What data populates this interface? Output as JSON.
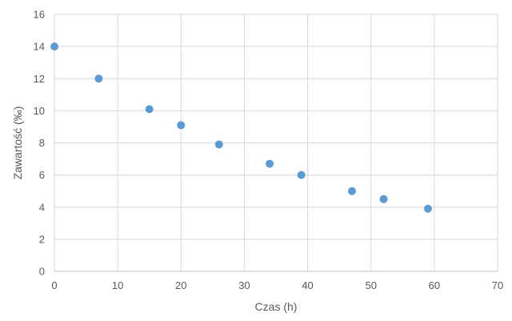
{
  "chart_data": {
    "type": "scatter",
    "xlabel": "Czas (h)",
    "ylabel": "Zawartość (‰)",
    "xlim": [
      0,
      70
    ],
    "ylim": [
      0,
      16
    ],
    "xticks": [
      0,
      10,
      20,
      30,
      40,
      50,
      60,
      70
    ],
    "yticks": [
      0,
      2,
      4,
      6,
      8,
      10,
      12,
      14,
      16
    ],
    "grid": true,
    "marker_color": "#5b9bd5",
    "points": [
      {
        "x": 0,
        "y": 14
      },
      {
        "x": 7,
        "y": 12
      },
      {
        "x": 15,
        "y": 10.1
      },
      {
        "x": 20,
        "y": 9.1
      },
      {
        "x": 26,
        "y": 7.9
      },
      {
        "x": 34,
        "y": 6.7
      },
      {
        "x": 39,
        "y": 6.0
      },
      {
        "x": 47,
        "y": 5.0
      },
      {
        "x": 52,
        "y": 4.5
      },
      {
        "x": 59,
        "y": 3.9
      }
    ]
  }
}
